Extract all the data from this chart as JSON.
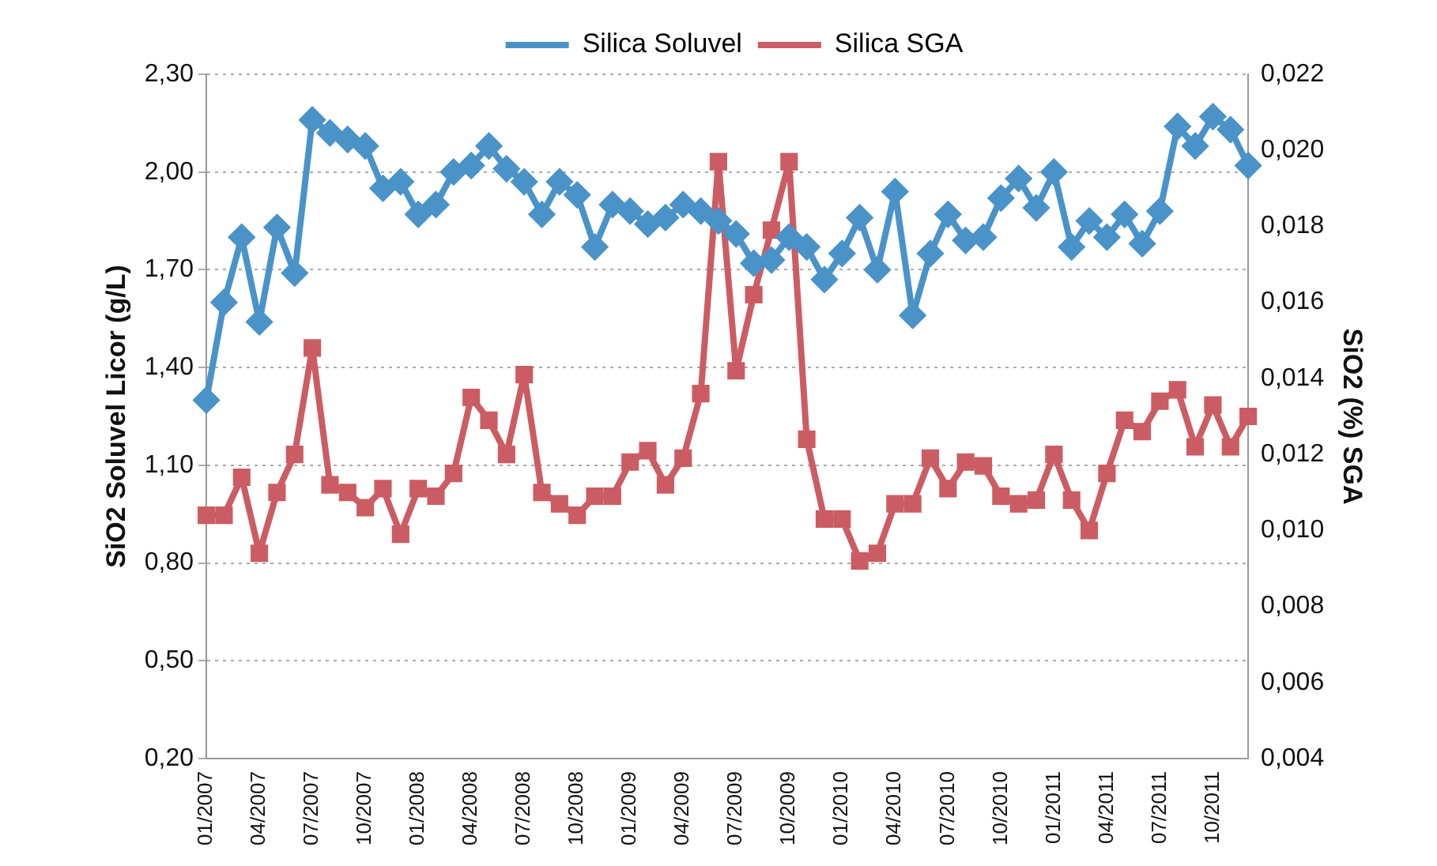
{
  "chart_data": {
    "type": "line",
    "categories": [
      "01/2007",
      null,
      null,
      "04/2007",
      null,
      null,
      "07/2007",
      null,
      null,
      "10/2007",
      null,
      null,
      "01/2008",
      null,
      null,
      "04/2008",
      null,
      null,
      "07/2008",
      null,
      null,
      "10/2008",
      null,
      null,
      "01/2009",
      null,
      null,
      "04/2009",
      null,
      null,
      "07/2009",
      null,
      null,
      "10/2009",
      null,
      null,
      "01/2010",
      null,
      null,
      "04/2010",
      null,
      null,
      "07/2010",
      null,
      null,
      "10/2010",
      null,
      null,
      "01/2011",
      null,
      null,
      "04/2011",
      null,
      null,
      "07/2011",
      null,
      null,
      "10/2011",
      null,
      null
    ],
    "ylabel": "SiO2 Soluvel Licor (g/L)",
    "y2label": "SiO2 (%) SGA",
    "ylim": [
      0.2,
      2.3
    ],
    "yticks": [
      {
        "value": 0.2,
        "label": "0,20"
      },
      {
        "value": 0.5,
        "label": "0,50"
      },
      {
        "value": 0.8,
        "label": "0,80"
      },
      {
        "value": 1.1,
        "label": "1,10"
      },
      {
        "value": 1.4,
        "label": "1,40"
      },
      {
        "value": 1.7,
        "label": "1,70"
      },
      {
        "value": 2.0,
        "label": "2,00"
      },
      {
        "value": 2.3,
        "label": "2,30"
      }
    ],
    "y2lim": [
      0.004,
      0.022
    ],
    "y2ticks": [
      {
        "value": 0.004,
        "label": "0,004"
      },
      {
        "value": 0.006,
        "label": "0,006"
      },
      {
        "value": 0.008,
        "label": "0,008"
      },
      {
        "value": 0.01,
        "label": "0,010"
      },
      {
        "value": 0.012,
        "label": "0,012"
      },
      {
        "value": 0.014,
        "label": "0,014"
      },
      {
        "value": 0.016,
        "label": "0,016"
      },
      {
        "value": 0.018,
        "label": "0,018"
      },
      {
        "value": 0.02,
        "label": "0,020"
      },
      {
        "value": 0.022,
        "label": "0,022"
      }
    ],
    "grid": "y",
    "legend": "top",
    "series": [
      {
        "name": "Silica Soluvel",
        "color": "#4a93c8",
        "marker": "diamond",
        "values": [
          1.3,
          1.6,
          1.8,
          1.54,
          1.83,
          1.69,
          2.16,
          2.12,
          2.1,
          2.08,
          1.95,
          1.97,
          1.87,
          1.9,
          2.0,
          2.02,
          2.08,
          2.01,
          1.97,
          1.87,
          1.97,
          1.93,
          1.77,
          1.9,
          1.88,
          1.84,
          1.86,
          1.9,
          1.88,
          1.85,
          1.81,
          1.72,
          1.73,
          1.8,
          1.77,
          1.67,
          1.75,
          1.86,
          1.7,
          1.94,
          1.56,
          1.75,
          1.87,
          1.79,
          1.8,
          1.92,
          1.98,
          1.89,
          2.0,
          1.77,
          1.85,
          1.8,
          1.87,
          1.78,
          1.88,
          2.14,
          2.08,
          2.17,
          2.13,
          2.02
        ]
      },
      {
        "name": "Silica SGA",
        "color": "#cc5c63",
        "marker": "square",
        "axis": "y2",
        "values": [
          0.0104,
          0.0104,
          0.0114,
          0.0094,
          0.011,
          0.012,
          0.0148,
          0.0112,
          0.011,
          0.0106,
          0.0111,
          0.0099,
          0.0111,
          0.0109,
          0.0115,
          0.0135,
          0.0129,
          0.012,
          0.0141,
          0.011,
          0.0107,
          0.0104,
          0.0109,
          0.0109,
          0.0118,
          0.0121,
          0.0112,
          0.0119,
          0.0136,
          0.0197,
          0.0142,
          0.0162,
          0.0179,
          0.0197,
          0.0124,
          0.0103,
          0.0103,
          0.0092,
          0.0094,
          0.0107,
          0.0107,
          0.0119,
          0.0111,
          0.0118,
          0.0117,
          0.0109,
          0.0107,
          0.0108,
          0.012,
          0.0108,
          0.01,
          0.0115,
          0.0129,
          0.0126,
          0.0134,
          0.0137,
          0.0122,
          0.0133,
          0.0122,
          0.013
        ]
      }
    ]
  }
}
